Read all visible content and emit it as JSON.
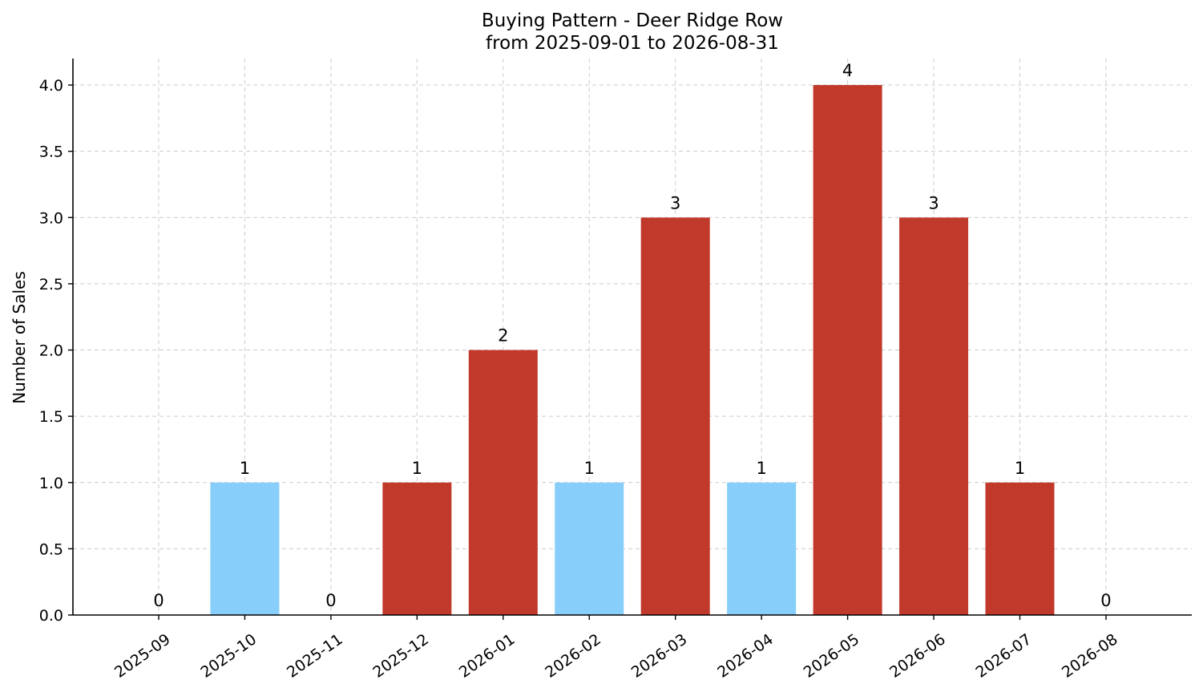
{
  "chart_data": {
    "type": "bar",
    "title": "Buying Pattern - Deer Ridge Row",
    "subtitle": "from 2025-09-01 to 2026-08-31",
    "xlabel": "",
    "ylabel": "Number of Sales",
    "ylim": [
      0,
      4.2
    ],
    "yticks": [
      "0.0",
      "0.5",
      "1.0",
      "1.5",
      "2.0",
      "2.5",
      "3.0",
      "3.5",
      "4.0"
    ],
    "grid": true,
    "categories": [
      "2025-09",
      "2025-10",
      "2025-11",
      "2025-12",
      "2026-01",
      "2026-02",
      "2026-03",
      "2026-04",
      "2026-05",
      "2026-06",
      "2026-07",
      "2026-08"
    ],
    "values": [
      0,
      1,
      0,
      1,
      2,
      1,
      3,
      1,
      4,
      3,
      1,
      0
    ],
    "data_labels": [
      "0",
      "1",
      "0",
      "1",
      "2",
      "1",
      "3",
      "1",
      "4",
      "3",
      "1",
      "0"
    ],
    "bar_colors": [
      "#87cefa",
      "#87cefa",
      "#87cefa",
      "#c0392b",
      "#c0392b",
      "#87cefa",
      "#c0392b",
      "#87cefa",
      "#c0392b",
      "#c0392b",
      "#c0392b",
      "#87cefa"
    ]
  }
}
